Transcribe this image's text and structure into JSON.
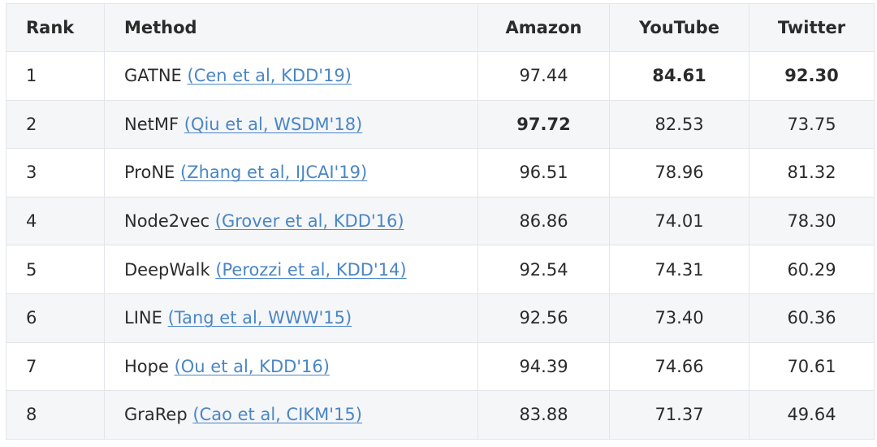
{
  "table": {
    "headers": {
      "rank": "Rank",
      "method": "Method",
      "amazon": "Amazon",
      "youtube": "YouTube",
      "twitter": "Twitter"
    },
    "rows": [
      {
        "rank": "1",
        "method": "GATNE",
        "ref": "(Cen et al, KDD'19)",
        "amazon": "97.44",
        "youtube": "84.61",
        "twitter": "92.30",
        "bold": [
          "youtube",
          "twitter"
        ]
      },
      {
        "rank": "2",
        "method": "NetMF",
        "ref": "(Qiu et al, WSDM'18)",
        "amazon": "97.72",
        "youtube": "82.53",
        "twitter": "73.75",
        "bold": [
          "amazon"
        ]
      },
      {
        "rank": "3",
        "method": "ProNE",
        "ref": "(Zhang et al, IJCAI'19)",
        "amazon": "96.51",
        "youtube": "78.96",
        "twitter": "81.32",
        "bold": []
      },
      {
        "rank": "4",
        "method": "Node2vec",
        "ref": "(Grover et al, KDD'16)",
        "amazon": "86.86",
        "youtube": "74.01",
        "twitter": "78.30",
        "bold": []
      },
      {
        "rank": "5",
        "method": "DeepWalk",
        "ref": "(Perozzi et al, KDD'14)",
        "amazon": "92.54",
        "youtube": "74.31",
        "twitter": "60.29",
        "bold": []
      },
      {
        "rank": "6",
        "method": "LINE",
        "ref": "(Tang et al, WWW'15)",
        "amazon": "92.56",
        "youtube": "73.40",
        "twitter": "60.36",
        "bold": []
      },
      {
        "rank": "7",
        "method": "Hope",
        "ref": "(Ou et al, KDD'16)",
        "amazon": "94.39",
        "youtube": "74.66",
        "twitter": "70.61",
        "bold": []
      },
      {
        "rank": "8",
        "method": "GraRep",
        "ref": "(Cao et al, CIKM'15)",
        "amazon": "83.88",
        "youtube": "71.37",
        "twitter": "49.64",
        "bold": []
      }
    ]
  },
  "colors": {
    "link": "#4a86c5",
    "stripe": "#f5f6f8",
    "border": "#e2e5ea"
  }
}
